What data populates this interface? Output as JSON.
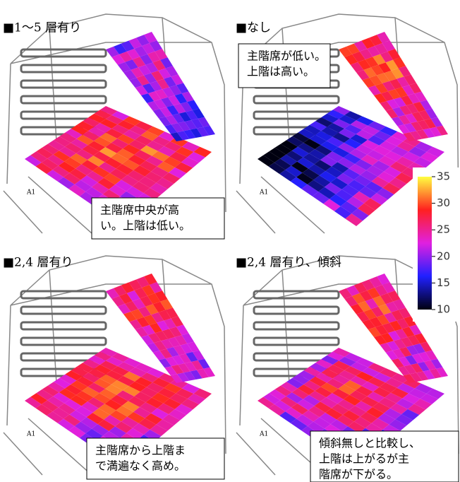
{
  "panels": [
    {
      "title": "■1～5 層有り",
      "note": [
        "主階席中央が高",
        "い。上階は低い。"
      ],
      "seat_label": "A1"
    },
    {
      "title": "■なし",
      "note": [
        "主階席が低い。",
        "上階は高い。"
      ],
      "seat_label": "A1"
    },
    {
      "title": "■2,4 層有り",
      "note": [
        "主階席から上階ま",
        "で満遍なく高め。"
      ],
      "seat_label": "A1"
    },
    {
      "title": "■2,4 層有り、傾斜",
      "note": [
        "傾斜無しと比較し、",
        "上階は上がるが主",
        "階席が下がる。"
      ],
      "seat_label": "A1"
    }
  ],
  "colorbar": {
    "range": [
      10,
      35
    ],
    "ticks": [
      10,
      15,
      20,
      25,
      30,
      35
    ]
  }
}
